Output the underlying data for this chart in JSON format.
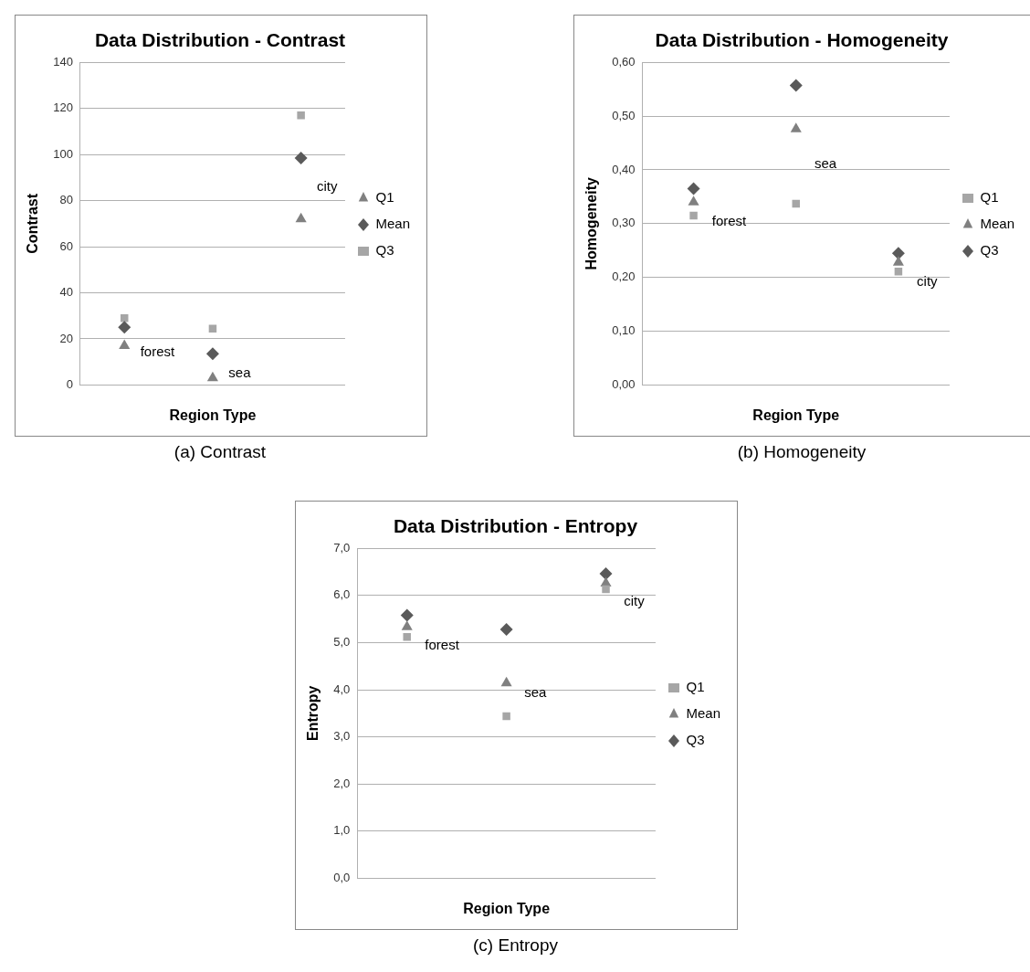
{
  "chart_data": [
    {
      "type": "scatter",
      "title": "Data Distribution - Contrast",
      "xlabel": "Region Type",
      "ylabel": "Contrast",
      "categories": [
        null,
        null,
        null
      ],
      "series": [
        {
          "name": "Q1",
          "color": "#808080",
          "marker": "triangle",
          "values": [
            17,
            3,
            72
          ]
        },
        {
          "name": "Mean",
          "color": "#5a5a5a",
          "marker": "diamond",
          "values": [
            25,
            13.5,
            98.5
          ]
        },
        {
          "name": "Q3",
          "color": "#a6a6a6",
          "marker": "square",
          "values": [
            29,
            24.4,
            117
          ]
        }
      ],
      "ylim": [
        0,
        140
      ],
      "yticks": [
        0,
        20,
        40,
        60,
        80,
        100,
        120,
        140
      ],
      "grid": "y",
      "legend": "right",
      "annotations": [
        "forest",
        "sea",
        "city",
        "(a) Contrast"
      ]
    },
    {
      "type": "scatter",
      "title": "Data Distribution - Homogeneity",
      "xlabel": "Region Type",
      "ylabel": "Homogeneity",
      "categories": [
        null,
        null,
        null
      ],
      "series": [
        {
          "name": "Q1",
          "color": "#a6a6a6",
          "marker": "square",
          "values": [
            0.315,
            0.337,
            0.211
          ]
        },
        {
          "name": "Mean",
          "color": "#808080",
          "marker": "triangle",
          "values": [
            0.34,
            0.476,
            0.228
          ]
        },
        {
          "name": "Q3",
          "color": "#5a5a5a",
          "marker": "diamond",
          "values": [
            0.365,
            0.557,
            0.245
          ]
        }
      ],
      "ylim": [
        0,
        0.6
      ],
      "yticks": [
        {
          "value": 0,
          "label": "0,00"
        },
        {
          "value": 0.1,
          "label": "0,10"
        },
        {
          "value": 0.2,
          "label": "0,20"
        },
        {
          "value": 0.3,
          "label": "0,30"
        },
        {
          "value": 0.4,
          "label": "0,40"
        },
        {
          "value": 0.5,
          "label": "0,50"
        },
        {
          "value": 0.6,
          "label": "0,60"
        }
      ],
      "grid": "y",
      "legend": "right",
      "annotations": [
        "forest",
        "sea",
        "city",
        "(b) Homogeneity"
      ]
    },
    {
      "type": "scatter",
      "title": "Data Distribution - Entropy",
      "xlabel": "Region Type",
      "ylabel": "Entropy",
      "categories": [
        null,
        null,
        null
      ],
      "series": [
        {
          "name": "Q1",
          "color": "#a6a6a6",
          "marker": "square",
          "values": [
            5.12,
            3.44,
            6.13
          ]
        },
        {
          "name": "Mean",
          "color": "#808080",
          "marker": "triangle",
          "values": [
            5.33,
            4.14,
            6.26
          ]
        },
        {
          "name": "Q3",
          "color": "#5a5a5a",
          "marker": "diamond",
          "values": [
            5.58,
            5.28,
            6.46
          ]
        }
      ],
      "ylim": [
        0,
        7
      ],
      "yticks": [
        {
          "value": 0,
          "label": "0,0"
        },
        {
          "value": 1,
          "label": "1,0"
        },
        {
          "value": 2,
          "label": "2,0"
        },
        {
          "value": 3,
          "label": "3,0"
        },
        {
          "value": 4,
          "label": "4,0"
        },
        {
          "value": 5,
          "label": "5,0"
        },
        {
          "value": 6,
          "label": "6,0"
        },
        {
          "value": 7,
          "label": "7,0"
        }
      ],
      "grid": "y",
      "legend": "right",
      "annotations": [
        "forest",
        "sea",
        "city",
        "(c) Entropy"
      ]
    }
  ]
}
